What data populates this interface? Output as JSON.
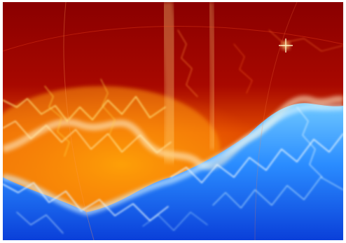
{
  "image": {
    "subject": "fire-and-ice-lightning-abstract",
    "icon": "fractal-lightning-icon",
    "colors": {
      "frame": "#ffffff",
      "deep_red": "#8a0000",
      "red": "#c41200",
      "orange": "#ff7a00",
      "yellow": "#ffd24a",
      "white_hot": "#fff6d8",
      "pale_blue": "#bfeaff",
      "cyan": "#52b8ff",
      "blue": "#1e74ff",
      "deep_blue": "#0a3fd9"
    }
  }
}
